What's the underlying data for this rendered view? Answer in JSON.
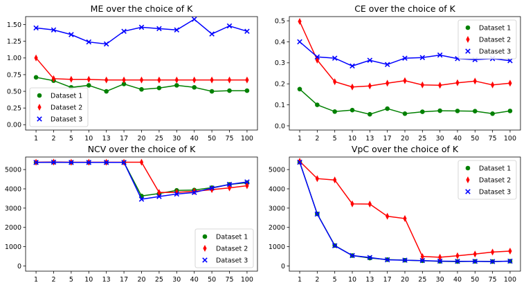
{
  "chart_data": [
    {
      "type": "line",
      "title": "ME over the choice of K",
      "categories": [
        "1",
        "2",
        "5",
        "10",
        "13",
        "17",
        "20",
        "25",
        "30",
        "40",
        "50",
        "75",
        "100"
      ],
      "ylim": [
        -0.08,
        1.62
      ],
      "yticks": [
        "0.00",
        "0.25",
        "0.50",
        "0.75",
        "1.00",
        "1.25",
        "1.50"
      ],
      "ytick_values": [
        0,
        0.25,
        0.5,
        0.75,
        1.0,
        1.25,
        1.5
      ],
      "legend_position": "lower-left",
      "grid": false,
      "series": [
        {
          "name": "Dataset 1",
          "color": "#008000",
          "marker": "circle",
          "values": [
            0.71,
            0.66,
            0.56,
            0.59,
            0.5,
            0.61,
            0.53,
            0.55,
            0.59,
            0.56,
            0.5,
            0.51,
            0.51
          ]
        },
        {
          "name": "Dataset 2",
          "color": "#ff0000",
          "marker": "thin_diamond",
          "values": [
            1.0,
            0.69,
            0.68,
            0.68,
            0.67,
            0.67,
            0.67,
            0.67,
            0.67,
            0.67,
            0.67,
            0.67,
            0.67
          ]
        },
        {
          "name": "Dataset 3",
          "color": "#0000ff",
          "marker": "x",
          "values": [
            1.45,
            1.42,
            1.35,
            1.24,
            1.21,
            1.4,
            1.46,
            1.44,
            1.42,
            1.58,
            1.36,
            1.48,
            1.4
          ]
        }
      ]
    },
    {
      "type": "line",
      "title": "CE over the choice of K",
      "categories": [
        "1",
        "2",
        "5",
        "10",
        "13",
        "17",
        "20",
        "25",
        "30",
        "40",
        "50",
        "75",
        "100"
      ],
      "ylim": [
        -0.02,
        0.52
      ],
      "yticks": [
        "0.0",
        "0.1",
        "0.2",
        "0.3",
        "0.4",
        "0.5"
      ],
      "ytick_values": [
        0,
        0.1,
        0.2,
        0.3,
        0.4,
        0.5
      ],
      "legend_position": "upper-right",
      "grid": false,
      "series": [
        {
          "name": "Dataset 1",
          "color": "#008000",
          "marker": "circle",
          "values": [
            0.175,
            0.1,
            0.068,
            0.075,
            0.055,
            0.082,
            0.058,
            0.067,
            0.072,
            0.071,
            0.07,
            0.058,
            0.071
          ]
        },
        {
          "name": "Dataset 2",
          "color": "#ff0000",
          "marker": "thin_diamond",
          "values": [
            0.497,
            0.313,
            0.21,
            0.185,
            0.19,
            0.203,
            0.215,
            0.195,
            0.193,
            0.205,
            0.213,
            0.195,
            0.203
          ]
        },
        {
          "name": "Dataset 3",
          "color": "#0000ff",
          "marker": "x",
          "values": [
            0.4,
            0.328,
            0.322,
            0.285,
            0.312,
            0.292,
            0.322,
            0.325,
            0.337,
            0.32,
            0.315,
            0.32,
            0.31
          ]
        }
      ]
    },
    {
      "type": "line",
      "title": "NCV over the choice of K",
      "categories": [
        "1",
        "2",
        "5",
        "10",
        "13",
        "17",
        "20",
        "25",
        "30",
        "40",
        "50",
        "75",
        "100"
      ],
      "ylim": [
        -270,
        5650
      ],
      "yticks": [
        "0",
        "1000",
        "2000",
        "3000",
        "4000",
        "5000"
      ],
      "ytick_values": [
        0,
        1000,
        2000,
        3000,
        4000,
        5000
      ],
      "legend_position": "lower-right",
      "grid": false,
      "series": [
        {
          "name": "Dataset 1",
          "color": "#008000",
          "marker": "circle",
          "values": [
            5370,
            5380,
            5370,
            5370,
            5370,
            5370,
            3630,
            3760,
            3920,
            3940,
            4060,
            4230,
            4320
          ]
        },
        {
          "name": "Dataset 2",
          "color": "#ff0000",
          "marker": "thin_diamond",
          "values": [
            5380,
            5390,
            5380,
            5380,
            5380,
            5380,
            5380,
            3810,
            3820,
            3870,
            3960,
            4050,
            4160
          ]
        },
        {
          "name": "Dataset 3",
          "color": "#0000ff",
          "marker": "x",
          "values": [
            5370,
            5380,
            5370,
            5370,
            5370,
            5370,
            3460,
            3600,
            3730,
            3810,
            4040,
            4230,
            4360
          ]
        }
      ]
    },
    {
      "type": "line",
      "title": "VpC over the choice of K",
      "categories": [
        "1",
        "2",
        "5",
        "10",
        "13",
        "17",
        "20",
        "25",
        "30",
        "40",
        "50",
        "75",
        "100"
      ],
      "ylim": [
        -270,
        5650
      ],
      "yticks": [
        "0",
        "1000",
        "2000",
        "3000",
        "4000",
        "5000"
      ],
      "ytick_values": [
        0,
        1000,
        2000,
        3000,
        4000,
        5000
      ],
      "legend_position": "upper-right",
      "grid": false,
      "series": [
        {
          "name": "Dataset 1",
          "color": "#008000",
          "marker": "circle",
          "values": [
            5390,
            2700,
            1060,
            540,
            410,
            330,
            300,
            270,
            240,
            230,
            240,
            230,
            250
          ]
        },
        {
          "name": "Dataset 2",
          "color": "#ff0000",
          "marker": "thin_diamond",
          "values": [
            5430,
            4530,
            4460,
            3220,
            3210,
            2580,
            2460,
            490,
            450,
            530,
            620,
            720,
            770
          ]
        },
        {
          "name": "Dataset 3",
          "color": "#0000ff",
          "marker": "x",
          "values": [
            5380,
            2690,
            1050,
            540,
            440,
            320,
            300,
            280,
            250,
            240,
            240,
            230,
            250
          ]
        }
      ]
    }
  ]
}
